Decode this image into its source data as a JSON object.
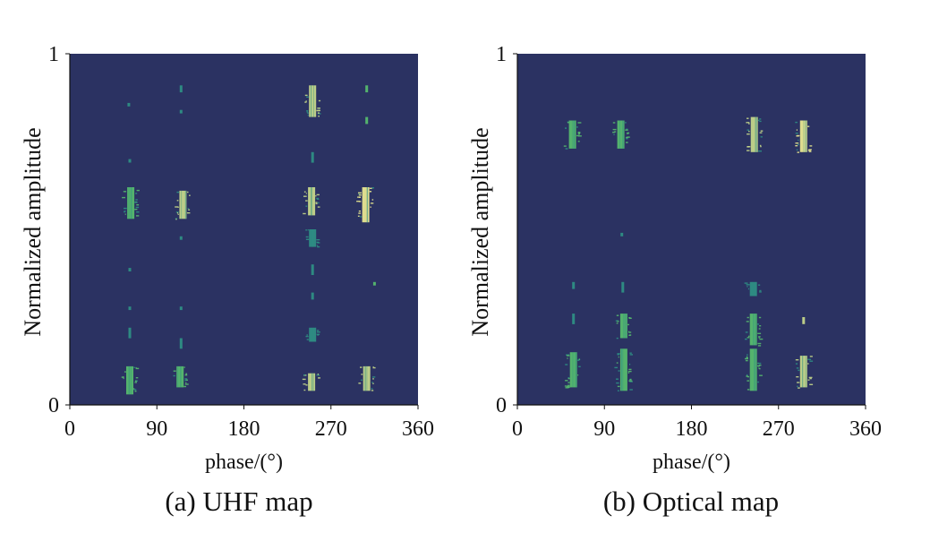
{
  "colors": {
    "background": "#2b3262",
    "low": "#2e8f84",
    "mid": "#56ba6e",
    "high": "#c4d68a",
    "peak": "#e8e690",
    "text": "#111111"
  },
  "chart_data": [
    {
      "type": "heatmap",
      "title": "",
      "caption": "(a) UHF map",
      "xlabel": "phase/(°)",
      "ylabel": "Normalized amplitude",
      "xlim": [
        0,
        360
      ],
      "ylim": [
        0,
        1
      ],
      "x_ticks": [
        "0",
        "90",
        "180",
        "270",
        "360"
      ],
      "y_ticks": [
        "0",
        "1"
      ],
      "clusters": [
        {
          "x": 63,
          "y": [
            0.53,
            0.62
          ],
          "intensity": 0.45
        },
        {
          "x": 61,
          "y": [
            0.85,
            0.86
          ],
          "intensity": 0.3
        },
        {
          "x": 62,
          "y": [
            0.69,
            0.7
          ],
          "intensity": 0.3
        },
        {
          "x": 62,
          "y": [
            0.38,
            0.39
          ],
          "intensity": 0.3
        },
        {
          "x": 62,
          "y": [
            0.27,
            0.28
          ],
          "intensity": 0.3
        },
        {
          "x": 62,
          "y": [
            0.19,
            0.22
          ],
          "intensity": 0.35
        },
        {
          "x": 62,
          "y": [
            0.03,
            0.11
          ],
          "intensity": 0.4
        },
        {
          "x": 117,
          "y": [
            0.53,
            0.61
          ],
          "intensity": 0.6
        },
        {
          "x": 115,
          "y": [
            0.89,
            0.91
          ],
          "intensity": 0.3
        },
        {
          "x": 115,
          "y": [
            0.83,
            0.84
          ],
          "intensity": 0.3
        },
        {
          "x": 115,
          "y": [
            0.47,
            0.48
          ],
          "intensity": 0.3
        },
        {
          "x": 115,
          "y": [
            0.27,
            0.28
          ],
          "intensity": 0.3
        },
        {
          "x": 115,
          "y": [
            0.16,
            0.19
          ],
          "intensity": 0.35
        },
        {
          "x": 114,
          "y": [
            0.05,
            0.11
          ],
          "intensity": 0.4
        },
        {
          "x": 250,
          "y": [
            0.54,
            0.62
          ],
          "intensity": 0.65
        },
        {
          "x": 251,
          "y": [
            0.82,
            0.91
          ],
          "intensity": 0.75
        },
        {
          "x": 251,
          "y": [
            0.69,
            0.72
          ],
          "intensity": 0.3
        },
        {
          "x": 251,
          "y": [
            0.45,
            0.5
          ],
          "intensity": 0.3
        },
        {
          "x": 251,
          "y": [
            0.37,
            0.4
          ],
          "intensity": 0.3
        },
        {
          "x": 251,
          "y": [
            0.3,
            0.32
          ],
          "intensity": 0.3
        },
        {
          "x": 251,
          "y": [
            0.18,
            0.22
          ],
          "intensity": 0.3
        },
        {
          "x": 250,
          "y": [
            0.04,
            0.09
          ],
          "intensity": 0.6
        },
        {
          "x": 306,
          "y": [
            0.52,
            0.62
          ],
          "intensity": 0.9
        },
        {
          "x": 307,
          "y": [
            0.89,
            0.91
          ],
          "intensity": 0.5
        },
        {
          "x": 307,
          "y": [
            0.8,
            0.82
          ],
          "intensity": 0.5
        },
        {
          "x": 315,
          "y": [
            0.34,
            0.35
          ],
          "intensity": 0.5
        },
        {
          "x": 307,
          "y": [
            0.04,
            0.11
          ],
          "intensity": 0.75
        }
      ]
    },
    {
      "type": "heatmap",
      "title": "",
      "caption": "(b) Optical map",
      "xlabel": "phase/(°)",
      "ylabel": "Normalized amplitude",
      "xlim": [
        0,
        360
      ],
      "ylim": [
        0,
        1
      ],
      "x_ticks": [
        "0",
        "90",
        "180",
        "270",
        "360"
      ],
      "y_ticks": [
        "0",
        "1"
      ],
      "clusters": [
        {
          "x": 57,
          "y": [
            0.73,
            0.81
          ],
          "intensity": 0.4
        },
        {
          "x": 58,
          "y": [
            0.33,
            0.35
          ],
          "intensity": 0.3
        },
        {
          "x": 58,
          "y": [
            0.23,
            0.26
          ],
          "intensity": 0.3
        },
        {
          "x": 58,
          "y": [
            0.05,
            0.15
          ],
          "intensity": 0.4
        },
        {
          "x": 107,
          "y": [
            0.73,
            0.81
          ],
          "intensity": 0.55
        },
        {
          "x": 108,
          "y": [
            0.48,
            0.49
          ],
          "intensity": 0.3
        },
        {
          "x": 109,
          "y": [
            0.32,
            0.35
          ],
          "intensity": 0.35
        },
        {
          "x": 110,
          "y": [
            0.19,
            0.26
          ],
          "intensity": 0.4
        },
        {
          "x": 110,
          "y": [
            0.04,
            0.16
          ],
          "intensity": 0.45
        },
        {
          "x": 245,
          "y": [
            0.72,
            0.82
          ],
          "intensity": 0.7
        },
        {
          "x": 244,
          "y": [
            0.31,
            0.35
          ],
          "intensity": 0.35
        },
        {
          "x": 244,
          "y": [
            0.17,
            0.26
          ],
          "intensity": 0.45
        },
        {
          "x": 244,
          "y": [
            0.04,
            0.16
          ],
          "intensity": 0.55
        },
        {
          "x": 296,
          "y": [
            0.72,
            0.81
          ],
          "intensity": 1.0
        },
        {
          "x": 296,
          "y": [
            0.23,
            0.25
          ],
          "intensity": 0.6
        },
        {
          "x": 296,
          "y": [
            0.05,
            0.14
          ],
          "intensity": 0.8
        }
      ]
    }
  ]
}
